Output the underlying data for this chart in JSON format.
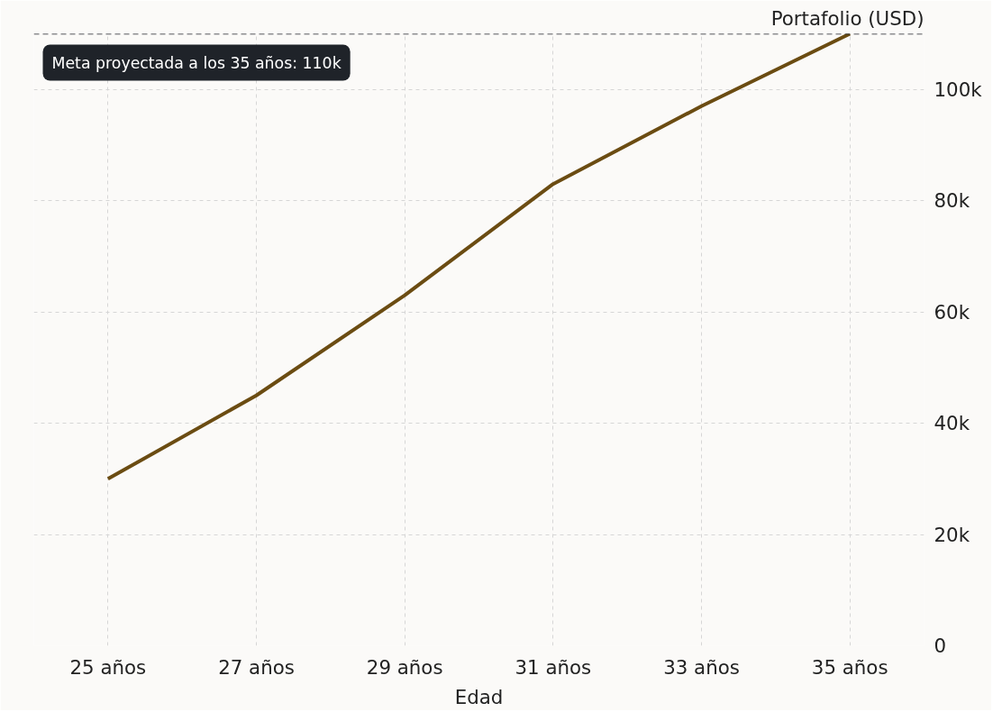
{
  "chart_data": {
    "type": "line",
    "xlabel": "Edad",
    "ylabel": "Portafolio (USD)",
    "categories": [
      "25 años",
      "27 años",
      "29 años",
      "31 años",
      "33 años",
      "35 años"
    ],
    "series": [
      {
        "color": "#6b4c12",
        "values": [
          30000,
          45000,
          63000,
          83000,
          97000,
          110000
        ]
      }
    ],
    "ylim": [
      0,
      110000
    ],
    "yticks": [
      0,
      {
        "value": 20000,
        "label": "20k"
      },
      {
        "value": 40000,
        "label": "40k"
      },
      {
        "value": 60000,
        "label": "60k"
      },
      {
        "value": 80000,
        "label": "80k"
      },
      {
        "value": 100000,
        "label": "100k"
      }
    ],
    "ref_lines": [
      {
        "axis": "y",
        "value": 110000,
        "label": "Meta proyectada a los 35 años: 110k",
        "color": "#1f2329",
        "line_style": "dashed"
      }
    ],
    "grid": true,
    "marker": "none",
    "line_style": "solid"
  }
}
